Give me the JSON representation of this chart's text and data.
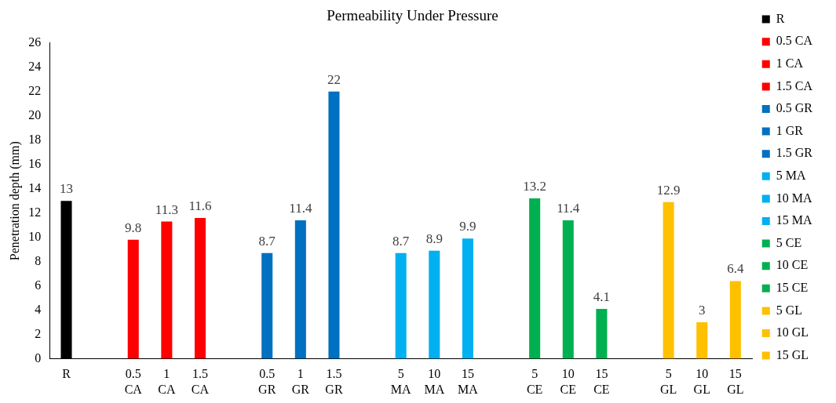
{
  "chart_data": {
    "type": "bar",
    "title": "Permeability Under Pressure",
    "ylabel": "Penetration depth (mm)",
    "categories": [
      "R",
      null,
      "0.5 CA",
      "1 CA",
      "1.5 CA",
      null,
      "0.5 GR",
      "1 GR",
      "1.5 GR",
      null,
      "5 MA",
      "10 MA",
      "15 MA",
      null,
      "5 CE",
      "10 CE",
      "15 CE",
      null,
      "5 GL",
      "10 GL",
      "15 GL"
    ],
    "series": [
      {
        "name": "R",
        "color": "#000000",
        "values": [
          13,
          null,
          null,
          null,
          null,
          null,
          null,
          null,
          null,
          null,
          null,
          null,
          null,
          null,
          null,
          null,
          null,
          null,
          null,
          null,
          null
        ]
      },
      {
        "name": "0.5 CA",
        "color": "#ff0000",
        "values": [
          null,
          null,
          9.8,
          null,
          null,
          null,
          null,
          null,
          null,
          null,
          null,
          null,
          null,
          null,
          null,
          null,
          null,
          null,
          null,
          null,
          null
        ]
      },
      {
        "name": "1 CA",
        "color": "#ff0000",
        "values": [
          null,
          null,
          null,
          11.3,
          null,
          null,
          null,
          null,
          null,
          null,
          null,
          null,
          null,
          null,
          null,
          null,
          null,
          null,
          null,
          null,
          null
        ]
      },
      {
        "name": "1.5 CA",
        "color": "#ff0000",
        "values": [
          null,
          null,
          null,
          null,
          11.6,
          null,
          null,
          null,
          null,
          null,
          null,
          null,
          null,
          null,
          null,
          null,
          null,
          null,
          null,
          null,
          null
        ]
      },
      {
        "name": "0.5 GR",
        "color": "#0070c0",
        "values": [
          null,
          null,
          null,
          null,
          null,
          null,
          8.7,
          null,
          null,
          null,
          null,
          null,
          null,
          null,
          null,
          null,
          null,
          null,
          null,
          null,
          null
        ]
      },
      {
        "name": "1 GR",
        "color": "#0070c0",
        "values": [
          null,
          null,
          null,
          null,
          null,
          null,
          null,
          11.4,
          null,
          null,
          null,
          null,
          null,
          null,
          null,
          null,
          null,
          null,
          null,
          null,
          null
        ]
      },
      {
        "name": "1.5 GR",
        "color": "#0070c0",
        "values": [
          null,
          null,
          null,
          null,
          null,
          null,
          null,
          null,
          22,
          null,
          null,
          null,
          null,
          null,
          null,
          null,
          null,
          null,
          null,
          null,
          null
        ]
      },
      {
        "name": "5 MA",
        "color": "#00b0f0",
        "values": [
          null,
          null,
          null,
          null,
          null,
          null,
          null,
          null,
          null,
          null,
          8.7,
          null,
          null,
          null,
          null,
          null,
          null,
          null,
          null,
          null,
          null
        ]
      },
      {
        "name": "10 MA",
        "color": "#00b0f0",
        "values": [
          null,
          null,
          null,
          null,
          null,
          null,
          null,
          null,
          null,
          null,
          null,
          8.9,
          null,
          null,
          null,
          null,
          null,
          null,
          null,
          null,
          null
        ]
      },
      {
        "name": "15 MA",
        "color": "#00b0f0",
        "values": [
          null,
          null,
          null,
          null,
          null,
          null,
          null,
          null,
          null,
          null,
          null,
          null,
          9.9,
          null,
          null,
          null,
          null,
          null,
          null,
          null,
          null
        ]
      },
      {
        "name": "5 CE",
        "color": "#00b050",
        "values": [
          null,
          null,
          null,
          null,
          null,
          null,
          null,
          null,
          null,
          null,
          null,
          null,
          null,
          null,
          13.2,
          null,
          null,
          null,
          null,
          null,
          null
        ]
      },
      {
        "name": "10 CE",
        "color": "#00b050",
        "values": [
          null,
          null,
          null,
          null,
          null,
          null,
          null,
          null,
          null,
          null,
          null,
          null,
          null,
          null,
          null,
          11.4,
          null,
          null,
          null,
          null,
          null
        ]
      },
      {
        "name": "15 CE",
        "color": "#00b050",
        "values": [
          null,
          null,
          null,
          null,
          null,
          null,
          null,
          null,
          null,
          null,
          null,
          null,
          null,
          null,
          null,
          null,
          4.1,
          null,
          null,
          null,
          null
        ]
      },
      {
        "name": "5 GL",
        "color": "#ffc000",
        "values": [
          null,
          null,
          null,
          null,
          null,
          null,
          null,
          null,
          null,
          null,
          null,
          null,
          null,
          null,
          null,
          null,
          null,
          null,
          12.9,
          null,
          null
        ]
      },
      {
        "name": "10 GL",
        "color": "#ffc000",
        "values": [
          null,
          null,
          null,
          null,
          null,
          null,
          null,
          null,
          null,
          null,
          null,
          null,
          null,
          null,
          null,
          null,
          null,
          null,
          null,
          3,
          null
        ]
      },
      {
        "name": "15 GL",
        "color": "#ffc000",
        "values": [
          null,
          null,
          null,
          null,
          null,
          null,
          null,
          null,
          null,
          null,
          null,
          null,
          null,
          null,
          null,
          null,
          null,
          null,
          null,
          null,
          6.4
        ]
      }
    ],
    "ylim": [
      0,
      26
    ],
    "yticks": [
      0,
      2,
      4,
      6,
      8,
      10,
      12,
      14,
      16,
      18,
      20,
      22,
      24,
      26
    ],
    "legend": "right",
    "data_labels": true
  }
}
